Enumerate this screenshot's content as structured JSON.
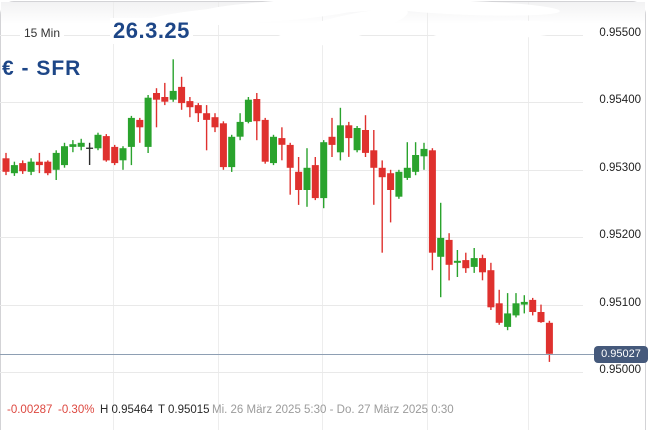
{
  "header": {
    "timeframe": "15 Min",
    "date_label": "26.3.25",
    "instrument": "€ - SFR"
  },
  "y_axis": {
    "labels": [
      "0.95500",
      "0.95400",
      "0.95300",
      "0.95200",
      "0.95100",
      "0.95000"
    ],
    "current_price_label": "0.95027"
  },
  "footer": {
    "change_abs": "-0.00287",
    "change_pct": "-0.30%",
    "high_label": "H 0.95464",
    "low_label": "T 0.95015",
    "range_label": "Mi. 26 März 2025 5:30 - Do. 27 März 2025 0:30"
  },
  "colors": {
    "up": "#2aa32d",
    "down": "#df312e",
    "neutral": "#2b2b2b",
    "accent_blue": "#1d4687",
    "badge_bg": "#45597b",
    "price_line": "#8e9fb3",
    "grid_h": "#e9e9e9",
    "grid_v": "#ededed",
    "negative_text": "#dd4840"
  },
  "chart_data": {
    "type": "candlestick",
    "title": "EUR/CHF (€ - SFR) 15 Min candlestick chart, 26.3.25",
    "interval": "15 Min",
    "date": "26.3.25",
    "session": "Mi. 26 März 2025 5:30 - Do. 27 März 2025 0:30",
    "y_ticks": [
      0.955,
      0.954,
      0.953,
      0.952,
      0.951,
      0.95
    ],
    "ylim": [
      0.94914,
      0.95552
    ],
    "grid": true,
    "legend": "none",
    "high": 0.95464,
    "low": 0.95015,
    "current_price": 0.95027,
    "change_abs": -0.00287,
    "change_pct": -0.3,
    "candles": [
      [
        0.95317,
        0.95325,
        0.95292,
        0.95297
      ],
      [
        0.95295,
        0.95312,
        0.95291,
        0.95307
      ],
      [
        0.9531,
        0.95314,
        0.95294,
        0.95298
      ],
      [
        0.95297,
        0.95317,
        0.95292,
        0.95312
      ],
      [
        0.95312,
        0.95325,
        0.95295,
        0.95307
      ],
      [
        0.95312,
        0.95314,
        0.95292,
        0.95295
      ],
      [
        0.953,
        0.95329,
        0.95285,
        0.95325
      ],
      [
        0.95307,
        0.9534,
        0.95303,
        0.95335
      ],
      [
        0.95334,
        0.95344,
        0.95326,
        0.95338
      ],
      [
        0.95334,
        0.95346,
        0.95329,
        0.9534
      ],
      [
        0.95333,
        0.9534,
        0.95307,
        0.95333
      ],
      [
        0.95332,
        0.95355,
        0.95329,
        0.95352
      ],
      [
        0.9535,
        0.95353,
        0.95312,
        0.95314
      ],
      [
        0.95334,
        0.95337,
        0.95307,
        0.9531
      ],
      [
        0.95314,
        0.95335,
        0.953,
        0.95332
      ],
      [
        0.95334,
        0.9538,
        0.95307,
        0.95377
      ],
      [
        0.95374,
        0.95377,
        0.9534,
        0.95363
      ],
      [
        0.95334,
        0.95411,
        0.95325,
        0.95407
      ],
      [
        0.95414,
        0.95421,
        0.95363,
        0.95404
      ],
      [
        0.95408,
        0.95429,
        0.95396,
        0.95401
      ],
      [
        0.95404,
        0.95464,
        0.95401,
        0.95417
      ],
      [
        0.95423,
        0.95438,
        0.95389,
        0.95399
      ],
      [
        0.95402,
        0.95408,
        0.95378,
        0.95393
      ],
      [
        0.95396,
        0.95399,
        0.95371,
        0.95384
      ],
      [
        0.95384,
        0.95396,
        0.95329,
        0.95374
      ],
      [
        0.95378,
        0.95384,
        0.95356,
        0.95363
      ],
      [
        0.95369,
        0.95372,
        0.953,
        0.95304
      ],
      [
        0.95304,
        0.95352,
        0.95297,
        0.95349
      ],
      [
        0.95349,
        0.95384,
        0.95344,
        0.95371
      ],
      [
        0.95371,
        0.95408,
        0.95369,
        0.95404
      ],
      [
        0.95405,
        0.95414,
        0.95344,
        0.95372
      ],
      [
        0.95374,
        0.95377,
        0.95309,
        0.95312
      ],
      [
        0.9531,
        0.95352,
        0.95307,
        0.95349
      ],
      [
        0.95347,
        0.95363,
        0.95314,
        0.95337
      ],
      [
        0.95337,
        0.9534,
        0.95263,
        0.95303
      ],
      [
        0.95297,
        0.95319,
        0.95248,
        0.9527
      ],
      [
        0.9527,
        0.95332,
        0.95245,
        0.95303
      ],
      [
        0.95307,
        0.95319,
        0.95255,
        0.95258
      ],
      [
        0.95258,
        0.95344,
        0.95243,
        0.95341
      ],
      [
        0.95349,
        0.95377,
        0.95319,
        0.95337
      ],
      [
        0.95326,
        0.95392,
        0.95314,
        0.95366
      ],
      [
        0.95366,
        0.95371,
        0.95319,
        0.95347
      ],
      [
        0.95329,
        0.95365,
        0.95326,
        0.95362
      ],
      [
        0.95359,
        0.95381,
        0.95319,
        0.95325
      ],
      [
        0.95329,
        0.95359,
        0.95248,
        0.95303
      ],
      [
        0.95303,
        0.95314,
        0.95177,
        0.95289
      ],
      [
        0.95295,
        0.953,
        0.95222,
        0.9527
      ],
      [
        0.9526,
        0.953,
        0.95257,
        0.95297
      ],
      [
        0.95288,
        0.95341,
        0.95285,
        0.95303
      ],
      [
        0.95297,
        0.95341,
        0.95292,
        0.95322
      ],
      [
        0.9532,
        0.9534,
        0.953,
        0.95331
      ],
      [
        0.95329,
        0.95332,
        0.95151,
        0.95177
      ],
      [
        0.95171,
        0.95251,
        0.95111,
        0.95199
      ],
      [
        0.95196,
        0.95206,
        0.95136,
        0.95159
      ],
      [
        0.95162,
        0.95181,
        0.95141,
        0.95165
      ],
      [
        0.95166,
        0.95177,
        0.95147,
        0.95154
      ],
      [
        0.95156,
        0.95184,
        0.95147,
        0.95169
      ],
      [
        0.95169,
        0.95174,
        0.95136,
        0.95148
      ],
      [
        0.95151,
        0.95162,
        0.95092,
        0.95096
      ],
      [
        0.95102,
        0.95122,
        0.9507,
        0.95073
      ],
      [
        0.95067,
        0.95117,
        0.95062,
        0.95087
      ],
      [
        0.95084,
        0.95117,
        0.95081,
        0.95102
      ],
      [
        0.951,
        0.95114,
        0.95087,
        0.95104
      ],
      [
        0.95107,
        0.9511,
        0.95084,
        0.95089
      ],
      [
        0.95089,
        0.951,
        0.95073,
        0.95074
      ],
      [
        0.95073,
        0.95076,
        0.95015,
        0.95027
      ]
    ]
  }
}
